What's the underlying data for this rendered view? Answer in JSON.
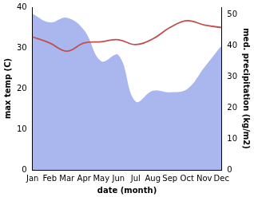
{
  "chart_data": {
    "type": "line",
    "x_label": "date (month)",
    "y_label": "max temp (C)",
    "y2_label": "med. precipitation (kg/m2)",
    "categories": [
      "Jan",
      "Feb",
      "Mar",
      "Apr",
      "May",
      "Jun",
      "Jul",
      "Aug",
      "Sep",
      "Oct",
      "Nov",
      "Dec"
    ],
    "series": [
      {
        "type": "area",
        "axis": "y2",
        "color": "#aab6ee",
        "values": [
          50.3,
          47.5,
          49,
          45,
          35,
          37,
          22,
          25.5,
          25,
          26,
          33,
          40
        ]
      },
      {
        "type": "line",
        "color": "#c0504d",
        "values": [
          32.7,
          31.2,
          29.2,
          31.2,
          31.5,
          32.0,
          30.8,
          32.2,
          35.0,
          36.7,
          35.6,
          35.0
        ]
      }
    ],
    "ylim": [
      0,
      40
    ],
    "yticks": [
      0,
      10,
      20,
      30,
      40
    ],
    "y2lim": [
      0,
      52.4
    ],
    "y2ticks": [
      0,
      10,
      20,
      30,
      40,
      50
    ],
    "grid": false
  }
}
